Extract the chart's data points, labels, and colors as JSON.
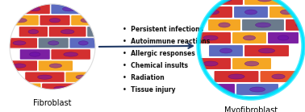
{
  "left_label": "Fibroblast",
  "right_label": "Myofibroblast",
  "bullet_points": [
    "Persistent infections",
    "Autoimmune reactions",
    "Allergic responses",
    "Chemical insults",
    "Radiation",
    "Tissue injury"
  ],
  "arrow_color": "#1f3864",
  "label_fontsize": 7.0,
  "bullet_fontsize": 5.5,
  "background_color": "#ffffff",
  "cyan_outline_color": "#00e5ff",
  "left_colors": [
    "#f5a623",
    "#f5a623",
    "#d32f2f",
    "#5c6bc0",
    "#d32f2f",
    "#f5a623",
    "#d32f2f",
    "#f5a623",
    "#d32f2f",
    "#d32f2f",
    "#6b7b8c",
    "#d32f2f",
    "#6b7b8c",
    "#5c6bc0",
    "#7b1fa2",
    "#d32f2f",
    "#d32f2f",
    "#f5a623",
    "#d32f2f"
  ],
  "right_colors": [
    "#6b7b8c",
    "#5c6bc0",
    "#d32f2f",
    "#f5a623",
    "#d32f2f",
    "#d32f2f",
    "#5c6bc0",
    "#f5a623",
    "#f5a623",
    "#6b7b8c",
    "#d32f2f",
    "#d32f2f",
    "#f5a623",
    "#7b1fa2",
    "#5c6bc0",
    "#d32f2f",
    "#d32f2f",
    "#f5a623",
    "#d32f2f",
    "#e8562a",
    "#7b1fa2",
    "#5c6bc0",
    "#d32f2f"
  ]
}
